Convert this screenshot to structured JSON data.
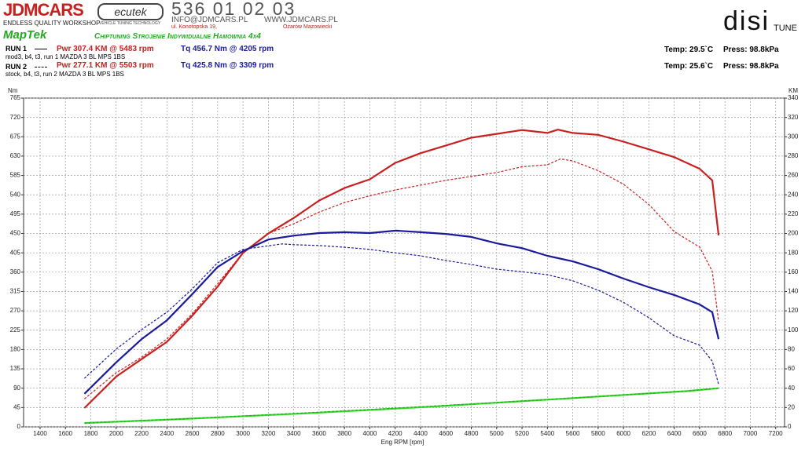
{
  "header": {
    "brand": "JDMCARS",
    "brand_tagline": "ENDLESS QUALITY WORKSHOP",
    "ecutek": "ecutek",
    "ecutek_tagline": "VEHICLE TUNING TECHNOLOGY",
    "phone": "536 01 02 03",
    "email": "INFO@JDMCARS.PL",
    "website": "WWW.JDMCARS.PL",
    "street": "ul. Konotopska 19,",
    "city": "Ożarów Mazowiecki",
    "maptek": "MapTek",
    "slogan": "Chiptuning Strojenie Indywidualne Hamownia 4x4",
    "disi": "disi",
    "tune": "TUNE"
  },
  "runs": [
    {
      "label": "RUN 1",
      "power": "Pwr  307.4 KM @ 5483 rpm",
      "torque": "Tq 456.7 Nm @ 4205 rpm",
      "description": "mod3, b4, t3, run 1 MAZDA 3 BL MPS 1BS",
      "temp": "Temp: 29.5`C",
      "press": "Press: 98.8kPa"
    },
    {
      "label": "RUN 2",
      "power": "Pwr  277.1 KM @ 5503 rpm",
      "torque": "Tq 425.8 Nm @ 3309 rpm",
      "description": "stock, b4, t3, run 2 MAZDA 3 BL MPS 1BS",
      "temp": "Temp: 25.6`C",
      "press": "Press: 98.8kPa"
    }
  ],
  "chart_data": {
    "type": "line",
    "y_label": "Nm",
    "y2_label": "KM",
    "x_label": "Eng RPM [rpm]",
    "xlim": [
      1270,
      7270
    ],
    "xticks": [
      1400,
      1600,
      1800,
      2000,
      2200,
      2400,
      2600,
      2800,
      3000,
      3200,
      3400,
      3600,
      3800,
      4000,
      4200,
      4400,
      4600,
      4800,
      5000,
      5200,
      5400,
      5600,
      5800,
      6000,
      6200,
      6400,
      6600,
      6800,
      7000,
      7200
    ],
    "ylim": [
      0,
      765
    ],
    "yticks": [
      0,
      45,
      90,
      135,
      180,
      225,
      270,
      315,
      360,
      405,
      450,
      495,
      540,
      585,
      630,
      675,
      720,
      765
    ],
    "y2lim": [
      0,
      340
    ],
    "y2ticks": [
      0,
      20,
      40,
      60,
      80,
      100,
      120,
      140,
      160,
      180,
      200,
      220,
      240,
      260,
      280,
      300,
      320,
      340
    ],
    "grid": true,
    "series": [
      {
        "color": "#c8201e",
        "dashed": false,
        "axis": "y2",
        "x": [
          1750,
          2000,
          2200,
          2400,
          2600,
          2800,
          3000,
          3200,
          3400,
          3600,
          3800,
          4000,
          4200,
          4400,
          4600,
          4800,
          5000,
          5200,
          5400,
          5483,
          5600,
          5800,
          6000,
          6200,
          6400,
          6600,
          6700,
          6750
        ],
        "values": [
          19.5,
          52,
          70,
          88,
          115,
          145,
          180,
          200,
          216,
          234,
          247,
          256,
          273,
          283,
          291,
          299,
          303,
          307,
          304,
          307.4,
          304,
          302,
          295,
          287,
          279,
          267,
          255,
          198
        ]
      },
      {
        "color": "#c8201e",
        "dashed": true,
        "axis": "y2",
        "x": [
          1750,
          2000,
          2200,
          2400,
          2600,
          2800,
          3000,
          3200,
          3400,
          3600,
          3800,
          4000,
          4200,
          4400,
          4600,
          4800,
          5000,
          5200,
          5400,
          5503,
          5600,
          5800,
          6000,
          6200,
          6400,
          6600,
          6700,
          6750
        ],
        "values": [
          29,
          56,
          72,
          91,
          117,
          148,
          180,
          200,
          210,
          222,
          232,
          239,
          245,
          250,
          255,
          259,
          263,
          269,
          271,
          277.1,
          275,
          265,
          251,
          230,
          202,
          186,
          161,
          109
        ]
      },
      {
        "color": "#1a1a9c",
        "dashed": false,
        "axis": "y",
        "x": [
          1750,
          2000,
          2200,
          2400,
          2600,
          2800,
          3000,
          3200,
          3400,
          3600,
          3800,
          4000,
          4205,
          4400,
          4600,
          4800,
          5000,
          5200,
          5400,
          5600,
          5800,
          6000,
          6200,
          6400,
          6600,
          6700,
          6750
        ],
        "values": [
          77,
          150,
          204,
          248,
          309,
          372,
          409,
          436,
          445,
          451,
          453,
          451,
          456.7,
          453,
          449,
          442,
          427,
          416,
          398,
          385,
          367,
          345,
          325,
          307,
          285,
          267,
          204
        ]
      },
      {
        "color": "#1a1a9c",
        "dashed": true,
        "axis": "y",
        "x": [
          1750,
          2000,
          2200,
          2400,
          2600,
          2800,
          3000,
          3309,
          3400,
          3600,
          3800,
          4000,
          4200,
          4400,
          4600,
          4800,
          5000,
          5200,
          5400,
          5600,
          5800,
          6000,
          6200,
          6400,
          6600,
          6700,
          6750
        ],
        "values": [
          113,
          181,
          226,
          267,
          321,
          382,
          413,
          425.8,
          424,
          422,
          418,
          413,
          405,
          398,
          387,
          378,
          367,
          361,
          354,
          340,
          318,
          290,
          254,
          212,
          190,
          153,
          99
        ]
      },
      {
        "color": "#33dd22",
        "dashed": false,
        "axis": "y2",
        "x": [
          1750,
          2500,
          3500,
          4500,
          5500,
          6000,
          6500,
          6750
        ],
        "values": [
          4,
          8,
          14,
          21,
          29,
          33,
          37,
          40
        ]
      },
      {
        "color": "#22aa22",
        "dashed": true,
        "axis": "y2",
        "x": [
          1750,
          2500,
          3500,
          4500,
          5500,
          6000,
          6500,
          6750
        ],
        "values": [
          4,
          8,
          14.5,
          21.5,
          29,
          33,
          37,
          40
        ]
      }
    ]
  }
}
